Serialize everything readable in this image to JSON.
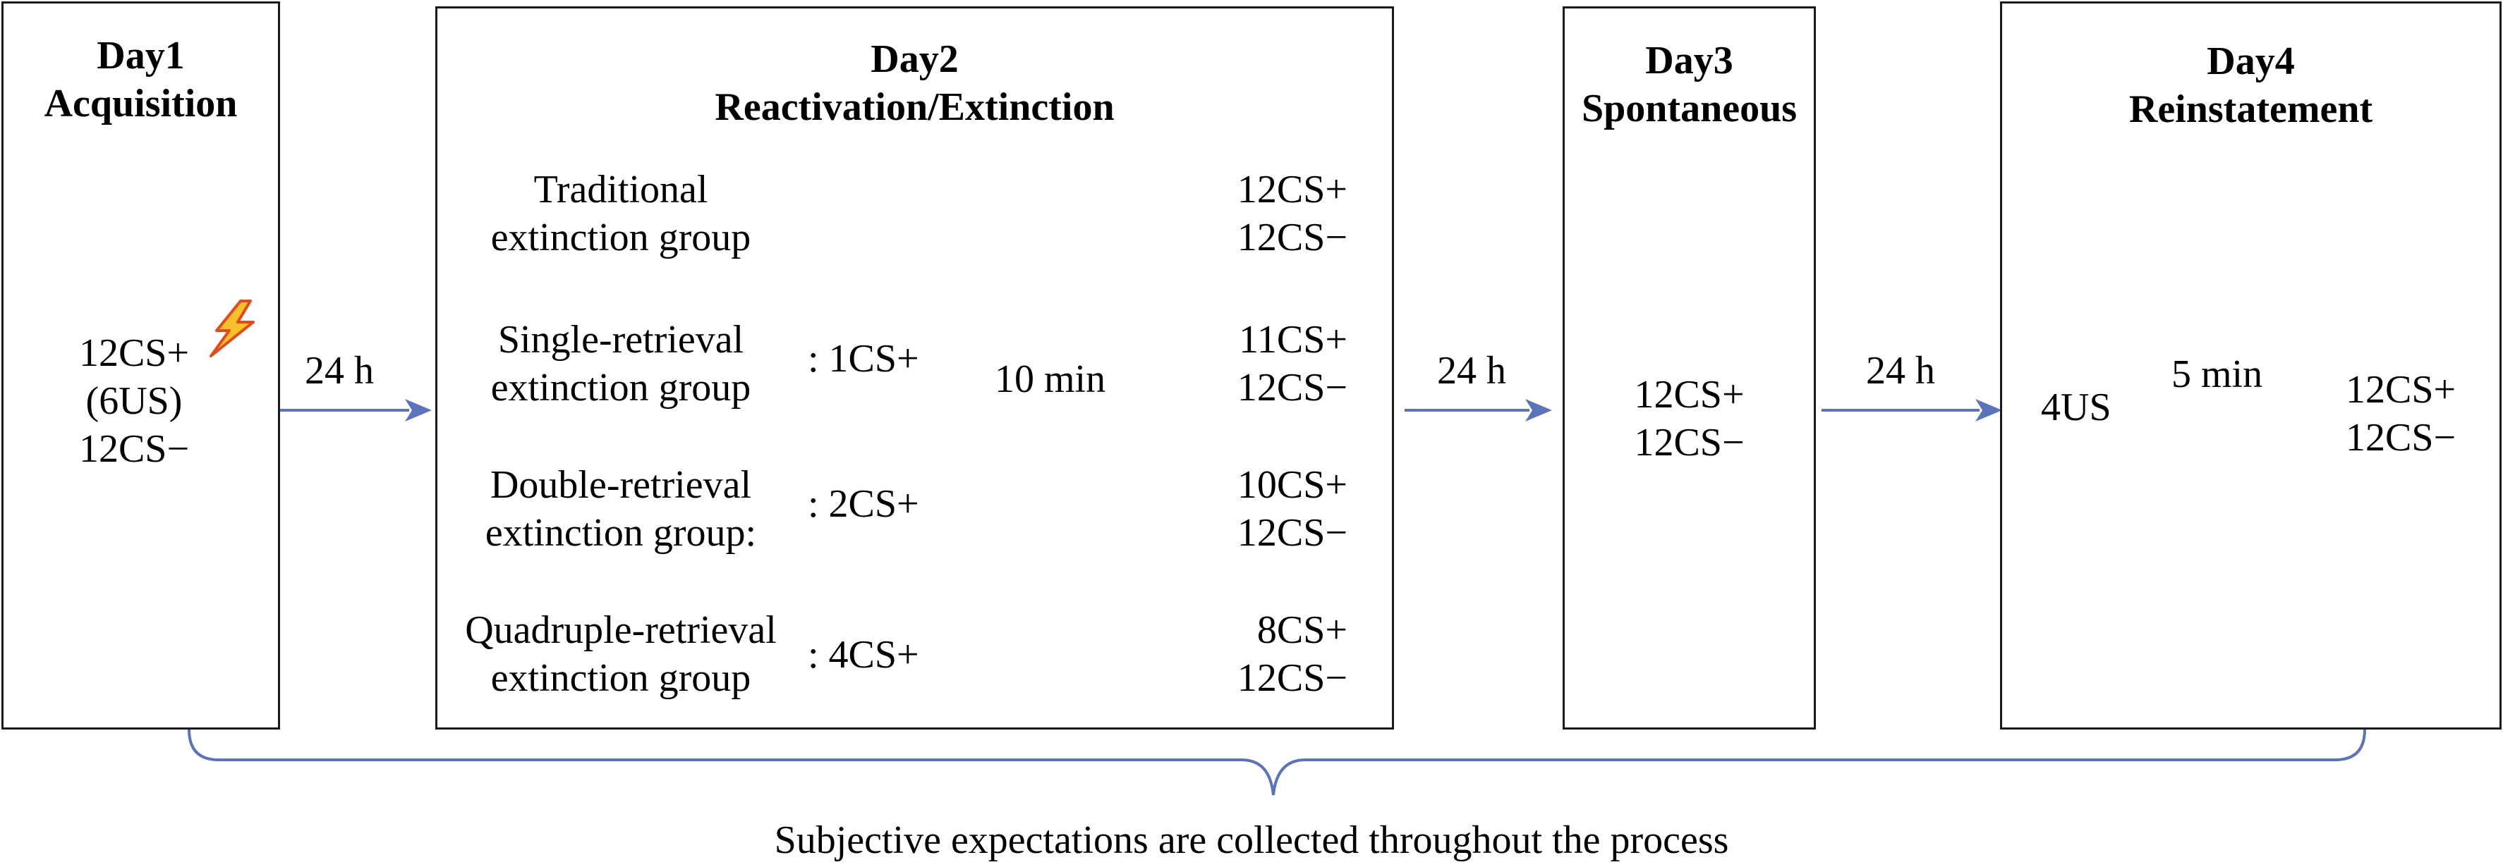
{
  "colors": {
    "arrow": "#5b73b9",
    "border": "#1a1a1a"
  },
  "day1": {
    "title_day": "Day1",
    "title_phase": "Acquisition",
    "line1": "12CS+",
    "line2": "(6US)",
    "line3": "12CS−",
    "icon": "lightning-bolt-icon"
  },
  "day2": {
    "title_day": "Day2",
    "title_phase": "Reactivation/Extinction",
    "delay": "10 min",
    "groups": [
      {
        "name1": "Traditional",
        "name2": "extinction group",
        "retrieval": "",
        "cs_plus": "12CS+",
        "cs_minus": "12CS−"
      },
      {
        "name1": "Single-retrieval",
        "name2": "extinction group",
        "retrieval": ": 1CS+",
        "cs_plus": "11CS+",
        "cs_minus": "12CS−"
      },
      {
        "name1": "Double-retrieval",
        "name2": "extinction group:",
        "retrieval": ": 2CS+",
        "cs_plus": "10CS+",
        "cs_minus": "12CS−"
      },
      {
        "name1": "Quadruple-retrieval",
        "name2": "extinction group",
        "retrieval": ": 4CS+",
        "cs_plus": "8CS+",
        "cs_minus": "12CS−"
      }
    ]
  },
  "day3": {
    "title_day": "Day3",
    "title_phase": "Spontaneous",
    "line1": "12CS+",
    "line2": "12CS−"
  },
  "day4": {
    "title_day": "Day4",
    "title_phase": "Reinstatement",
    "us": "4US",
    "delay": "5 min",
    "line1": "12CS+",
    "line2": "12CS−"
  },
  "intervals": {
    "d1_d2": "24 h",
    "d2_d3": "24 h",
    "d3_d4": "24 h"
  },
  "caption": "Subjective expectations are collected throughout the process"
}
